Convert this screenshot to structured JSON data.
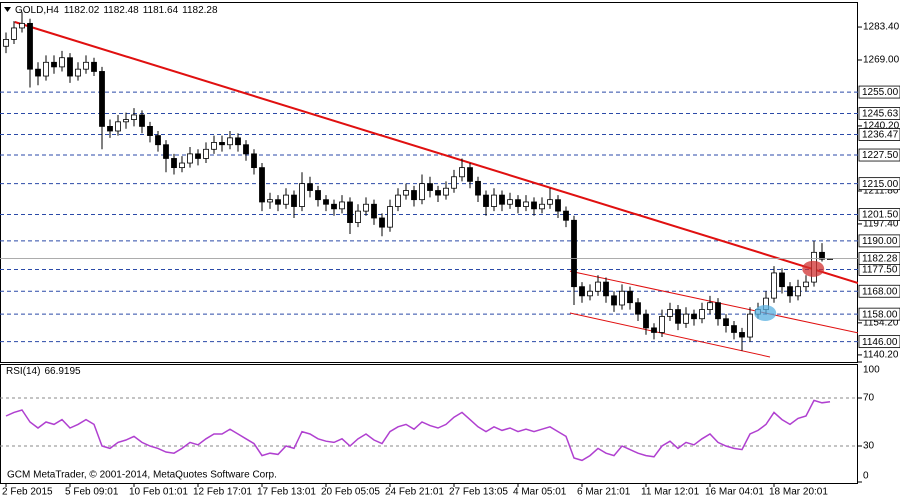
{
  "chart_data": {
    "type": "candlestick",
    "symbol": "GOLD,H4",
    "candles": [
      [
        1275,
        1281,
        1272,
        1278
      ],
      [
        1278,
        1286,
        1276,
        1283
      ],
      [
        1283,
        1290,
        1281,
        1285
      ],
      [
        1285,
        1287,
        1257,
        1265
      ],
      [
        1265,
        1268,
        1258,
        1262
      ],
      [
        1262,
        1271,
        1260,
        1268
      ],
      [
        1268,
        1271,
        1263,
        1266
      ],
      [
        1266,
        1273,
        1264,
        1270
      ],
      [
        1270,
        1272,
        1259,
        1262
      ],
      [
        1262,
        1268,
        1260,
        1265
      ],
      [
        1265,
        1271,
        1263,
        1268
      ],
      [
        1268,
        1270,
        1262,
        1264
      ],
      [
        1264,
        1266,
        1230,
        1240
      ],
      [
        1240,
        1243,
        1235,
        1238
      ],
      [
        1238,
        1245,
        1236,
        1242
      ],
      [
        1242,
        1246,
        1239,
        1243
      ],
      [
        1243,
        1248,
        1240,
        1245
      ],
      [
        1245,
        1247,
        1237,
        1240
      ],
      [
        1240,
        1242,
        1233,
        1236
      ],
      [
        1236,
        1238,
        1229,
        1232
      ],
      [
        1232,
        1234,
        1220,
        1226
      ],
      [
        1226,
        1228,
        1219,
        1222
      ],
      [
        1222,
        1227,
        1220,
        1224
      ],
      [
        1224,
        1231,
        1222,
        1228
      ],
      [
        1228,
        1230,
        1223,
        1226
      ],
      [
        1226,
        1233,
        1224,
        1230
      ],
      [
        1230,
        1236,
        1228,
        1233
      ],
      [
        1233,
        1236,
        1229,
        1232
      ],
      [
        1232,
        1238,
        1230,
        1235
      ],
      [
        1235,
        1237,
        1229,
        1232
      ],
      [
        1232,
        1234,
        1225,
        1228
      ],
      [
        1228,
        1230,
        1219,
        1222
      ],
      [
        1222,
        1224,
        1203,
        1207
      ],
      [
        1207,
        1211,
        1204,
        1208
      ],
      [
        1208,
        1210,
        1203,
        1206
      ],
      [
        1206,
        1213,
        1204,
        1210
      ],
      [
        1210,
        1212,
        1200,
        1205
      ],
      [
        1205,
        1220,
        1203,
        1215
      ],
      [
        1215,
        1218,
        1209,
        1212
      ],
      [
        1212,
        1214,
        1205,
        1208
      ],
      [
        1208,
        1210,
        1203,
        1206
      ],
      [
        1206,
        1208,
        1201,
        1204
      ],
      [
        1204,
        1210,
        1202,
        1207
      ],
      [
        1207,
        1209,
        1193,
        1198
      ],
      [
        1198,
        1206,
        1196,
        1203
      ],
      [
        1203,
        1209,
        1201,
        1206
      ],
      [
        1206,
        1208,
        1197,
        1200
      ],
      [
        1200,
        1202,
        1192,
        1196
      ],
      [
        1196,
        1208,
        1194,
        1205
      ],
      [
        1205,
        1213,
        1203,
        1210
      ],
      [
        1210,
        1215,
        1208,
        1212
      ],
      [
        1212,
        1214,
        1205,
        1208
      ],
      [
        1208,
        1219,
        1206,
        1215
      ],
      [
        1215,
        1218,
        1209,
        1212
      ],
      [
        1212,
        1214,
        1207,
        1210
      ],
      [
        1210,
        1216,
        1208,
        1213
      ],
      [
        1213,
        1221,
        1211,
        1218
      ],
      [
        1218,
        1226,
        1216,
        1222
      ],
      [
        1222,
        1224,
        1213,
        1216
      ],
      [
        1216,
        1218,
        1207,
        1210
      ],
      [
        1210,
        1212,
        1201,
        1205
      ],
      [
        1205,
        1213,
        1203,
        1210
      ],
      [
        1210,
        1212,
        1203,
        1206
      ],
      [
        1206,
        1211,
        1204,
        1208
      ],
      [
        1208,
        1210,
        1202,
        1205
      ],
      [
        1205,
        1210,
        1203,
        1207
      ],
      [
        1207,
        1209,
        1201,
        1204
      ],
      [
        1204,
        1209,
        1202,
        1206
      ],
      [
        1206,
        1213,
        1204,
        1208
      ],
      [
        1208,
        1210,
        1200,
        1203
      ],
      [
        1203,
        1205,
        1196,
        1199
      ],
      [
        1199,
        1201,
        1162,
        1170
      ],
      [
        1170,
        1172,
        1163,
        1166
      ],
      [
        1166,
        1171,
        1164,
        1168
      ],
      [
        1168,
        1175,
        1166,
        1172
      ],
      [
        1172,
        1174,
        1163,
        1166
      ],
      [
        1166,
        1168,
        1159,
        1162
      ],
      [
        1162,
        1171,
        1160,
        1168
      ],
      [
        1168,
        1170,
        1160,
        1163
      ],
      [
        1163,
        1165,
        1155,
        1158
      ],
      [
        1158,
        1160,
        1149,
        1152
      ],
      [
        1152,
        1154,
        1147,
        1150
      ],
      [
        1150,
        1160,
        1148,
        1157
      ],
      [
        1157,
        1163,
        1155,
        1160
      ],
      [
        1160,
        1162,
        1151,
        1154
      ],
      [
        1154,
        1161,
        1152,
        1158
      ],
      [
        1158,
        1160,
        1153,
        1156
      ],
      [
        1156,
        1163,
        1154,
        1160
      ],
      [
        1160,
        1166,
        1158,
        1163
      ],
      [
        1163,
        1165,
        1153,
        1156
      ],
      [
        1156,
        1158,
        1150,
        1153
      ],
      [
        1153,
        1155,
        1147,
        1150
      ],
      [
        1150,
        1152,
        1142,
        1148
      ],
      [
        1148,
        1161,
        1146,
        1158
      ],
      [
        1158,
        1163,
        1156,
        1160
      ],
      [
        1160,
        1168,
        1158,
        1165
      ],
      [
        1165,
        1179,
        1163,
        1176
      ],
      [
        1176,
        1178,
        1167,
        1170
      ],
      [
        1170,
        1172,
        1163,
        1166
      ],
      [
        1166,
        1173,
        1164,
        1170
      ],
      [
        1170,
        1175,
        1168,
        1172
      ],
      [
        1172,
        1190,
        1170,
        1185
      ],
      [
        1185,
        1189,
        1181,
        1182
      ],
      [
        1182.02,
        1182.48,
        1181.64,
        1182.28
      ]
    ],
    "up_color": "#ffffff",
    "down_color": "#000000",
    "xlim": [
      -0.75,
      106.5
    ],
    "xticks": [
      {
        "value": 0,
        "label": "2 Feb 2015"
      },
      {
        "value": 8,
        "label": "5 Feb 09:01"
      },
      {
        "value": 16,
        "label": "10 Feb 01:01"
      },
      {
        "value": 24,
        "label": "12 Feb 17:01"
      },
      {
        "value": 32,
        "label": "17 Feb 13:01"
      },
      {
        "value": 40,
        "label": "20 Feb 05:05"
      },
      {
        "value": 48,
        "label": "24 Feb 21:01"
      },
      {
        "value": 56,
        "label": "27 Feb 13:05"
      },
      {
        "value": 64,
        "label": "4 Mar 05:01"
      },
      {
        "value": 72,
        "label": "6 Mar 21:01"
      },
      {
        "value": 80,
        "label": "11 Mar 12:01"
      },
      {
        "value": 88,
        "label": "16 Mar 04:01"
      },
      {
        "value": 96,
        "label": "18 Mar 20:01"
      }
    ],
    "ylim": [
      1137.1,
      1293.9
    ],
    "yticks": [
      {
        "value": 1283.4,
        "label": "1283.40"
      },
      {
        "value": 1269,
        "label": "1269.00"
      },
      {
        "value": 1240.2,
        "label": "1240.20"
      },
      {
        "value": 1211.8,
        "label": "1211.80"
      },
      {
        "value": 1197.4,
        "label": "1197.40"
      },
      {
        "value": 1154.2,
        "label": "1154.20"
      },
      {
        "value": 1140.2,
        "label": "1140.20"
      }
    ],
    "level_color": "#2b4aa8",
    "levels": [
      {
        "value": 1255,
        "label": "1255.00"
      },
      1245.63,
      1236.47,
      {
        "value": 1227.5,
        "label": "1227.50"
      },
      {
        "value": 1215,
        "label": "1215.00"
      },
      {
        "value": 1201.5,
        "label": "1201.50"
      },
      {
        "value": 1190,
        "label": "1190.00"
      },
      {
        "value": 1177.5,
        "label": "1177.50"
      },
      {
        "value": 1168,
        "label": "1168.00"
      },
      {
        "value": 1158,
        "label": "1158.00"
      },
      {
        "value": 1146,
        "label": "1146.00"
      }
    ],
    "trendlines": [
      {
        "color": "#e01010",
        "points": [
          [
            1.1,
            1285.6
          ],
          [
            106.5,
            1171.6
          ]
        ]
      },
      {
        "color": "#e01010",
        "points": [
          [
            70.5,
            1176.8
          ],
          [
            106.5,
            1149.8
          ]
        ]
      },
      {
        "color": "#e01010",
        "points": [
          [
            70.5,
            1158.5
          ],
          [
            95.5,
            1139.3
          ]
        ]
      }
    ],
    "highlights": [
      {
        "x": 100.9,
        "y": 1177.8,
        "color": "#d03030"
      },
      {
        "x": 94.9,
        "y": 1158.5,
        "color": "#5ab0e0"
      }
    ],
    "rsi": {
      "name": "RSI(14)",
      "color": "#b040d0",
      "ylim": [
        0,
        100
      ],
      "yticks": [
        100,
        70,
        30,
        0
      ],
      "levels": [
        70,
        30
      ],
      "values": [
        55,
        58,
        60,
        50,
        45,
        50,
        48,
        52,
        45,
        48,
        52,
        48,
        30,
        28,
        33,
        35,
        38,
        33,
        30,
        28,
        25,
        24,
        28,
        33,
        31,
        36,
        40,
        40,
        44,
        40,
        36,
        32,
        22,
        24,
        23,
        30,
        28,
        42,
        40,
        36,
        34,
        33,
        36,
        30,
        36,
        40,
        35,
        32,
        42,
        46,
        48,
        44,
        50,
        47,
        45,
        48,
        54,
        58,
        52,
        46,
        42,
        46,
        43,
        45,
        42,
        44,
        42,
        44,
        46,
        42,
        38,
        20,
        18,
        22,
        28,
        24,
        22,
        30,
        27,
        24,
        22,
        21,
        30,
        34,
        28,
        33,
        31,
        36,
        40,
        33,
        30,
        28,
        27,
        40,
        43,
        48,
        58,
        52,
        48,
        53,
        55,
        68,
        66,
        66.9195
      ]
    },
    "footer": "GCM MetaTrader, © 2001-2014, MetaQuotes Software Corp."
  }
}
